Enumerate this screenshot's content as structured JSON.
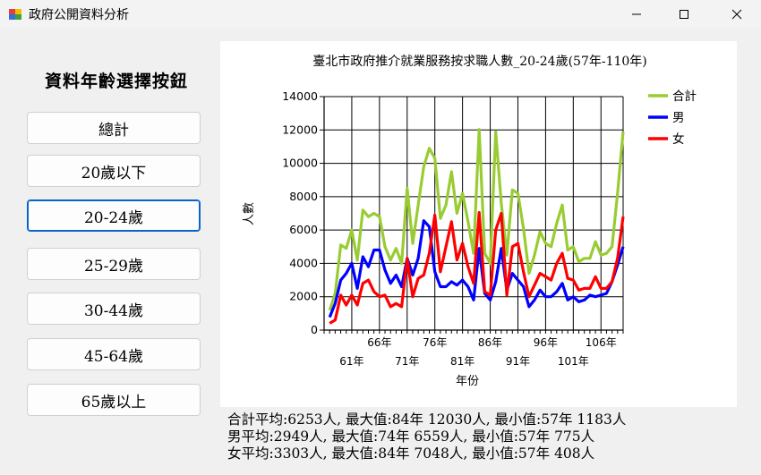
{
  "window": {
    "title": "政府公開資料分析"
  },
  "panel": {
    "title": "資料年齡選擇按鈕",
    "buttons": [
      "總計",
      "20歲以下",
      "20-24歲",
      "25-29歲",
      "30-44歲",
      "45-64歲",
      "65歲以上"
    ],
    "active_index": 2
  },
  "stats": {
    "line1": "合計平均:6253人, 最大值:84年 12030人, 最小值:57年 1183人",
    "line2": "男平均:2949人, 最大值:74年 6559人, 最小值:57年 775人",
    "line3": "女平均:3303人, 最大值:84年 7048人, 最小值:57年 408人"
  },
  "chart_data": {
    "type": "line",
    "title": "臺北市政府推介就業服務按求職人數_20-24歲(57年-110年)",
    "xlabel": "年份",
    "ylabel": "人數",
    "ylim": [
      0,
      14000
    ],
    "yticks": [
      0,
      2000,
      4000,
      6000,
      8000,
      10000,
      12000,
      14000
    ],
    "xlim": [
      56,
      110
    ],
    "xticks_upper": [
      "66年",
      "76年",
      "86年",
      "96年",
      "106年"
    ],
    "xticks_lower": [
      "61年",
      "71年",
      "81年",
      "91年",
      "101年"
    ],
    "legend_position": "top-right",
    "grid": true,
    "x": [
      57,
      58,
      59,
      60,
      61,
      62,
      63,
      64,
      65,
      66,
      67,
      68,
      69,
      70,
      71,
      72,
      73,
      74,
      75,
      76,
      77,
      78,
      79,
      80,
      81,
      82,
      83,
      84,
      85,
      86,
      87,
      88,
      89,
      90,
      91,
      92,
      93,
      94,
      95,
      96,
      97,
      98,
      99,
      100,
      101,
      102,
      103,
      104,
      105,
      106,
      107,
      108,
      109,
      110
    ],
    "series": [
      {
        "name": "合計",
        "color": "#99cc33",
        "values": [
          1183,
          2200,
          5100,
          4900,
          6000,
          4200,
          7200,
          6800,
          7000,
          6800,
          5000,
          4200,
          4900,
          4000,
          8500,
          5200,
          7500,
          9800,
          10900,
          10300,
          6700,
          7500,
          9500,
          7000,
          8200,
          6500,
          4600,
          12030,
          4600,
          4000,
          11900,
          7600,
          4500,
          8400,
          8200,
          6100,
          3400,
          4500,
          5900,
          5200,
          5000,
          6400,
          7500,
          4800,
          5000,
          4100,
          4300,
          4300,
          5300,
          4500,
          4600,
          5000,
          8200,
          11900
        ]
      },
      {
        "name": "男",
        "color": "#0000ff",
        "values": [
          775,
          1600,
          3000,
          3400,
          4000,
          2500,
          4400,
          3800,
          4800,
          4800,
          3600,
          2800,
          3300,
          2600,
          4300,
          3300,
          4300,
          6559,
          6200,
          3500,
          2600,
          2600,
          2900,
          2700,
          3000,
          2600,
          1800,
          4900,
          2200,
          1800,
          2900,
          4900,
          2400,
          3400,
          3000,
          2600,
          1400,
          1800,
          2400,
          2000,
          2000,
          2300,
          2800,
          1800,
          2000,
          1700,
          1800,
          2100,
          2000,
          2100,
          2200,
          2900,
          3900,
          5000
        ]
      },
      {
        "name": "女",
        "color": "#ff0000",
        "values": [
          408,
          600,
          2100,
          1500,
          2100,
          1500,
          2800,
          3000,
          2300,
          2000,
          2100,
          1400,
          1600,
          1400,
          4300,
          2000,
          3100,
          3300,
          4600,
          6900,
          3500,
          5000,
          6500,
          4200,
          5200,
          3800,
          2800,
          7048,
          2300,
          2100,
          6000,
          7000,
          2100,
          5000,
          5200,
          3500,
          2000,
          2700,
          3400,
          3200,
          3000,
          4000,
          4600,
          3100,
          3000,
          2400,
          2500,
          2500,
          3200,
          2500,
          2500,
          2900,
          4300,
          6800
        ]
      }
    ]
  }
}
